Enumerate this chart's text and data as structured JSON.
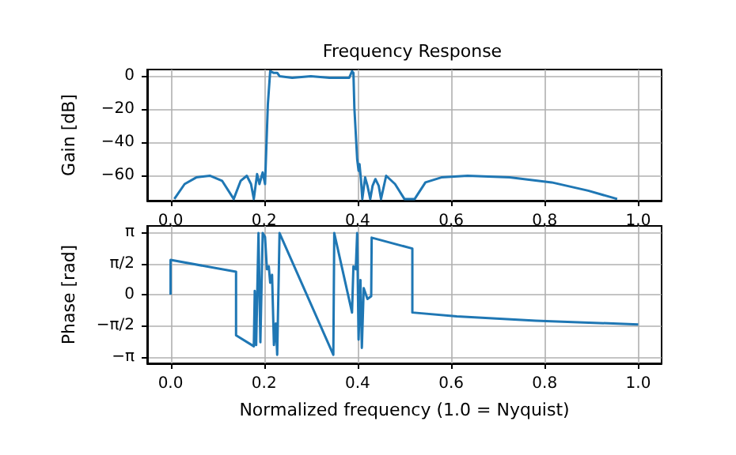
{
  "chart_data": [
    {
      "type": "line",
      "title": "Frequency Response",
      "ylabel": "Gain [dB]",
      "color": "#1f77b4",
      "grid": true,
      "x": [
        0.008,
        0.03,
        0.055,
        0.084,
        0.11,
        0.135,
        0.15,
        0.163,
        0.172,
        0.178,
        0.185,
        0.19,
        0.197,
        0.202,
        0.208,
        0.213,
        0.22,
        0.228,
        0.233,
        0.26,
        0.3,
        0.34,
        0.382,
        0.388,
        0.391,
        0.393,
        0.399,
        0.402,
        0.404,
        0.407,
        0.41,
        0.416,
        0.421,
        0.427,
        0.432,
        0.438,
        0.445,
        0.45,
        0.461,
        0.48,
        0.5,
        0.522,
        0.545,
        0.579,
        0.635,
        0.725,
        0.815,
        0.893,
        0.955
      ],
      "values": [
        -74,
        -65,
        -61,
        -60,
        -63,
        -74,
        -63,
        -60,
        -65,
        -74,
        -59,
        -65,
        -58,
        -65,
        -17,
        3,
        2,
        2,
        0,
        -1,
        0,
        -1,
        -1,
        3,
        2,
        -19,
        -50,
        -57,
        -53,
        -62,
        -74,
        -61,
        -66,
        -74,
        -66,
        -62,
        -66,
        -74,
        -60,
        -65,
        -74,
        -74,
        -64,
        -61,
        -60,
        -61,
        -64,
        -69,
        -74
      ],
      "xlim": [
        -0.05,
        1.05
      ],
      "xticks": [
        {
          "value": 0,
          "label": "0.0"
        },
        {
          "value": 0.2,
          "label": "0.2"
        },
        {
          "value": 0.4,
          "label": "0.4"
        },
        {
          "value": 0.6,
          "label": "0.6"
        },
        {
          "value": 0.8,
          "label": "0.8"
        },
        {
          "value": 1,
          "label": "1.0"
        }
      ],
      "ylim": [
        -75,
        4
      ],
      "yticks": [
        {
          "value": -60,
          "label": "−60"
        },
        {
          "value": -40,
          "label": "−40"
        },
        {
          "value": -20,
          "label": "−20"
        },
        0
      ]
    },
    {
      "type": "line",
      "xlabel": "Normalized frequency (1.0 = Nyquist)",
      "ylabel": "Phase [rad]",
      "color": "#1f77b4",
      "grid": true,
      "x": [
        0,
        0,
        0.14,
        0.14,
        0.178,
        0.18,
        0.183,
        0.188,
        0.192,
        0.197,
        0.202,
        0.206,
        0.21,
        0.213,
        0.217,
        0.221,
        0.225,
        0.228,
        0.233,
        0.348,
        0.35,
        0.388,
        0.391,
        0.396,
        0.399,
        0.402,
        0.406,
        0.409,
        0.413,
        0.421,
        0.429,
        0.43,
        0.517,
        0.517,
        0.612,
        0.781,
        1.0
      ],
      "values": [
        0,
        1.75,
        1.15,
        -2.05,
        -2.6,
        0.19,
        -2.54,
        3.1,
        -2.4,
        3.1,
        2.9,
        1.28,
        1.42,
        0.6,
        1.0,
        -2.54,
        -1.45,
        -3.03,
        3.1,
        -3.03,
        3.1,
        -0.9,
        1.42,
        1.28,
        3.1,
        -2.27,
        0.74,
        -2.68,
        0.33,
        -0.22,
        -0.08,
        2.87,
        2.32,
        -0.9,
        -1.09,
        -1.31,
        -1.5
      ],
      "xlim": [
        -0.05,
        1.05
      ],
      "xticks": [
        {
          "value": 0,
          "label": "0.0"
        },
        {
          "value": 0.2,
          "label": "0.2"
        },
        {
          "value": 0.4,
          "label": "0.4"
        },
        {
          "value": 0.6,
          "label": "0.6"
        },
        {
          "value": 0.8,
          "label": "0.8"
        },
        {
          "value": 1,
          "label": "1.0"
        }
      ],
      "ylim": [
        -3.46,
        3.46
      ],
      "yticks": [
        {
          "value": -3.14159,
          "label": "−π"
        },
        {
          "value": -1.5708,
          "label": "−π/2"
        },
        0,
        {
          "value": 1.5708,
          "label": "π/2"
        },
        {
          "value": 3.14159,
          "label": "π"
        }
      ]
    }
  ]
}
